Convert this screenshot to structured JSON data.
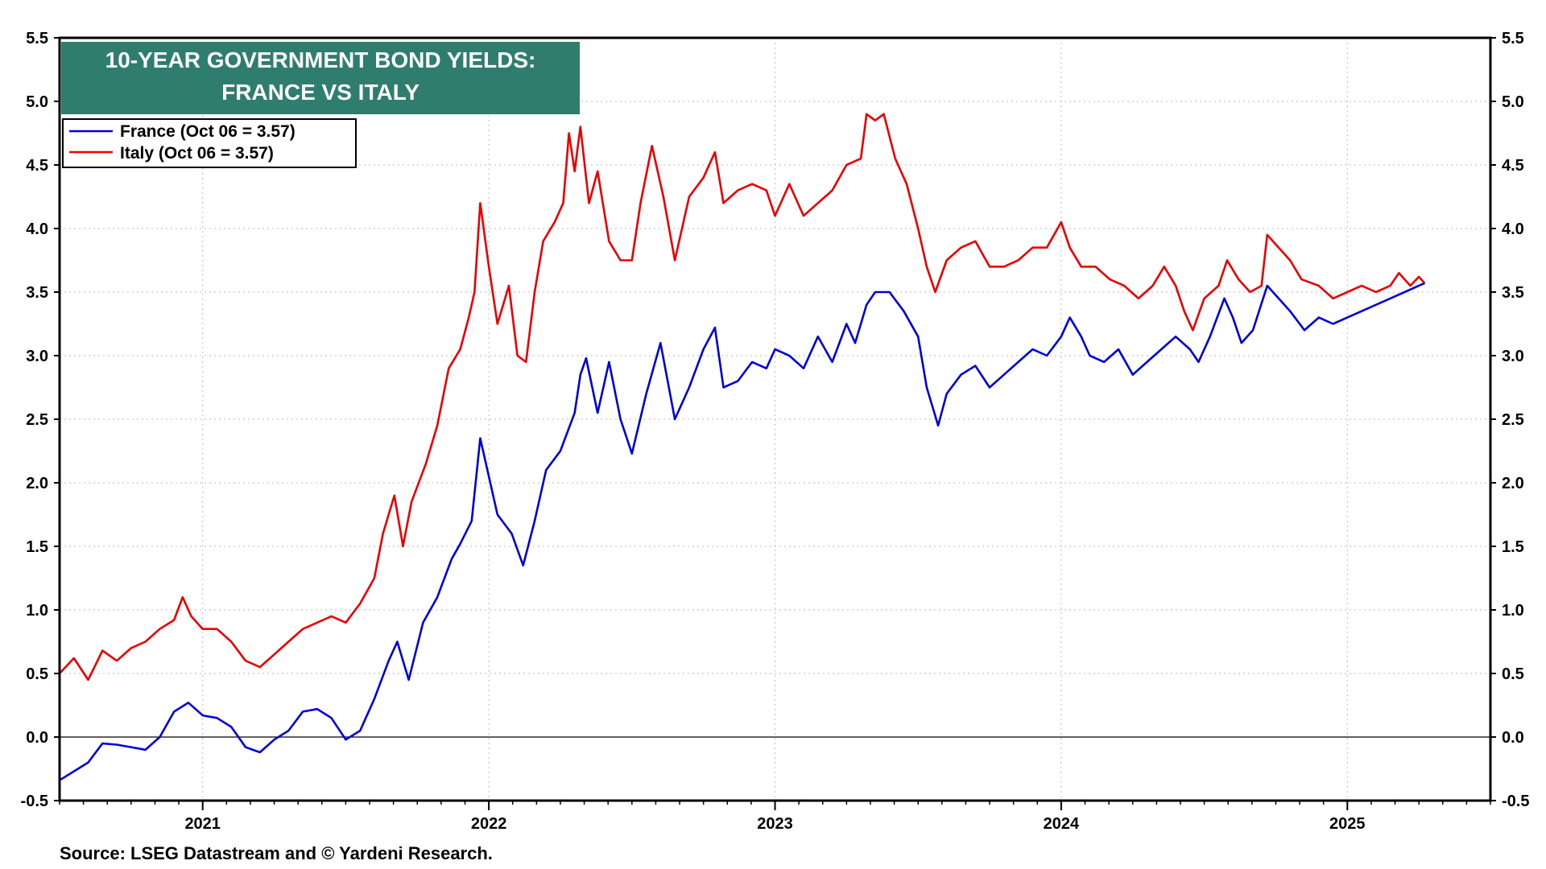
{
  "colors": {
    "france": "#0000dd",
    "italy": "#ee0000",
    "title_bg": "#2e7d6e",
    "grid": "#c8c8c8"
  },
  "source": "Source: LSEG Datastream and © Yardeni Research.",
  "chart_data": {
    "type": "line",
    "title_lines": [
      "10-YEAR GOVERNMENT BOND YIELDS:",
      "FRANCE VS ITALY"
    ],
    "ylim": [
      -0.5,
      5.5
    ],
    "y_ticks": [
      "5.5",
      "5.0",
      "4.5",
      "4.0",
      "3.5",
      "3.0",
      "2.5",
      "2.0",
      "1.5",
      "1.0",
      "0.5",
      "0.0",
      "-0.5"
    ],
    "x_range": [
      2020.5,
      2025.5
    ],
    "x_labels": [
      "2021",
      "2022",
      "2023",
      "2024",
      "2025"
    ],
    "legend_position": "top-left",
    "grid": true,
    "zero_line": true,
    "series": [
      {
        "name": "France (Oct 06 = 3.57)",
        "color": "#0000dd",
        "points": [
          [
            2020.5,
            -0.34
          ],
          [
            2020.6,
            -0.2
          ],
          [
            2020.65,
            -0.05
          ],
          [
            2020.7,
            -0.06
          ],
          [
            2020.75,
            -0.08
          ],
          [
            2020.8,
            -0.1
          ],
          [
            2020.85,
            0.0
          ],
          [
            2020.9,
            0.2
          ],
          [
            2020.95,
            0.27
          ],
          [
            2021.0,
            0.17
          ],
          [
            2021.05,
            0.15
          ],
          [
            2021.1,
            0.08
          ],
          [
            2021.15,
            -0.08
          ],
          [
            2021.2,
            -0.12
          ],
          [
            2021.25,
            -0.02
          ],
          [
            2021.3,
            0.05
          ],
          [
            2021.35,
            0.2
          ],
          [
            2021.4,
            0.22
          ],
          [
            2021.45,
            0.15
          ],
          [
            2021.5,
            -0.02
          ],
          [
            2021.55,
            0.05
          ],
          [
            2021.6,
            0.3
          ],
          [
            2021.65,
            0.6
          ],
          [
            2021.68,
            0.75
          ],
          [
            2021.72,
            0.45
          ],
          [
            2021.77,
            0.9
          ],
          [
            2021.82,
            1.1
          ],
          [
            2021.87,
            1.4
          ],
          [
            2021.9,
            1.52
          ],
          [
            2021.94,
            1.7
          ],
          [
            2021.97,
            2.35
          ],
          [
            2022.0,
            2.05
          ],
          [
            2022.03,
            1.75
          ],
          [
            2022.08,
            1.6
          ],
          [
            2022.12,
            1.35
          ],
          [
            2022.16,
            1.7
          ],
          [
            2022.2,
            2.1
          ],
          [
            2022.25,
            2.25
          ],
          [
            2022.3,
            2.55
          ],
          [
            2022.32,
            2.85
          ],
          [
            2022.34,
            2.98
          ],
          [
            2022.38,
            2.55
          ],
          [
            2022.42,
            2.95
          ],
          [
            2022.46,
            2.5
          ],
          [
            2022.5,
            2.23
          ],
          [
            2022.55,
            2.7
          ],
          [
            2022.6,
            3.1
          ],
          [
            2022.65,
            2.5
          ],
          [
            2022.7,
            2.75
          ],
          [
            2022.75,
            3.05
          ],
          [
            2022.79,
            3.22
          ],
          [
            2022.82,
            2.75
          ],
          [
            2022.87,
            2.8
          ],
          [
            2022.92,
            2.95
          ],
          [
            2022.97,
            2.9
          ],
          [
            2023.0,
            3.05
          ],
          [
            2023.05,
            3.0
          ],
          [
            2023.1,
            2.9
          ],
          [
            2023.15,
            3.15
          ],
          [
            2023.2,
            2.95
          ],
          [
            2023.25,
            3.25
          ],
          [
            2023.28,
            3.1
          ],
          [
            2023.32,
            3.4
          ],
          [
            2023.35,
            3.5
          ],
          [
            2023.4,
            3.5
          ],
          [
            2023.45,
            3.35
          ],
          [
            2023.5,
            3.15
          ],
          [
            2023.53,
            2.75
          ],
          [
            2023.57,
            2.45
          ],
          [
            2023.6,
            2.7
          ],
          [
            2023.65,
            2.85
          ],
          [
            2023.7,
            2.92
          ],
          [
            2023.75,
            2.75
          ],
          [
            2023.8,
            2.85
          ],
          [
            2023.85,
            2.95
          ],
          [
            2023.9,
            3.05
          ],
          [
            2023.95,
            3.0
          ],
          [
            2024.0,
            3.15
          ],
          [
            2024.03,
            3.3
          ],
          [
            2024.07,
            3.15
          ],
          [
            2024.1,
            3.0
          ],
          [
            2024.15,
            2.95
          ],
          [
            2024.2,
            3.05
          ],
          [
            2024.25,
            2.85
          ],
          [
            2024.3,
            2.95
          ],
          [
            2024.35,
            3.05
          ],
          [
            2024.4,
            3.15
          ],
          [
            2024.45,
            3.05
          ],
          [
            2024.48,
            2.95
          ],
          [
            2024.52,
            3.15
          ],
          [
            2024.57,
            3.45
          ],
          [
            2024.6,
            3.3
          ],
          [
            2024.63,
            3.1
          ],
          [
            2024.67,
            3.2
          ],
          [
            2024.72,
            3.55
          ],
          [
            2024.76,
            3.45
          ],
          [
            2024.8,
            3.35
          ],
          [
            2024.85,
            3.2
          ],
          [
            2024.9,
            3.3
          ],
          [
            2024.95,
            3.25
          ],
          [
            2025.0,
            3.3
          ],
          [
            2025.05,
            3.35
          ],
          [
            2025.1,
            3.4
          ],
          [
            2025.15,
            3.45
          ],
          [
            2025.2,
            3.5
          ],
          [
            2025.25,
            3.55
          ],
          [
            2025.27,
            3.57
          ]
        ]
      },
      {
        "name": "Italy (Oct 06 = 3.57)",
        "color": "#ee0000",
        "points": [
          [
            2020.5,
            0.5
          ],
          [
            2020.55,
            0.62
          ],
          [
            2020.6,
            0.45
          ],
          [
            2020.65,
            0.68
          ],
          [
            2020.7,
            0.6
          ],
          [
            2020.75,
            0.7
          ],
          [
            2020.8,
            0.75
          ],
          [
            2020.85,
            0.85
          ],
          [
            2020.9,
            0.92
          ],
          [
            2020.93,
            1.1
          ],
          [
            2020.96,
            0.95
          ],
          [
            2021.0,
            0.85
          ],
          [
            2021.05,
            0.85
          ],
          [
            2021.1,
            0.75
          ],
          [
            2021.15,
            0.6
          ],
          [
            2021.2,
            0.55
          ],
          [
            2021.25,
            0.65
          ],
          [
            2021.3,
            0.75
          ],
          [
            2021.35,
            0.85
          ],
          [
            2021.4,
            0.9
          ],
          [
            2021.45,
            0.95
          ],
          [
            2021.5,
            0.9
          ],
          [
            2021.55,
            1.05
          ],
          [
            2021.6,
            1.25
          ],
          [
            2021.63,
            1.6
          ],
          [
            2021.67,
            1.9
          ],
          [
            2021.7,
            1.5
          ],
          [
            2021.73,
            1.85
          ],
          [
            2021.78,
            2.15
          ],
          [
            2021.82,
            2.45
          ],
          [
            2021.86,
            2.9
          ],
          [
            2021.9,
            3.05
          ],
          [
            2021.93,
            3.3
          ],
          [
            2021.95,
            3.5
          ],
          [
            2021.97,
            4.2
          ],
          [
            2022.0,
            3.7
          ],
          [
            2022.03,
            3.25
          ],
          [
            2022.07,
            3.55
          ],
          [
            2022.1,
            3.0
          ],
          [
            2022.13,
            2.95
          ],
          [
            2022.16,
            3.5
          ],
          [
            2022.19,
            3.9
          ],
          [
            2022.23,
            4.05
          ],
          [
            2022.26,
            4.2
          ],
          [
            2022.28,
            4.75
          ],
          [
            2022.3,
            4.45
          ],
          [
            2022.32,
            4.8
          ],
          [
            2022.35,
            4.2
          ],
          [
            2022.38,
            4.45
          ],
          [
            2022.42,
            3.9
          ],
          [
            2022.46,
            3.75
          ],
          [
            2022.5,
            3.75
          ],
          [
            2022.53,
            4.2
          ],
          [
            2022.57,
            4.65
          ],
          [
            2022.61,
            4.25
          ],
          [
            2022.65,
            3.75
          ],
          [
            2022.7,
            4.25
          ],
          [
            2022.75,
            4.4
          ],
          [
            2022.79,
            4.6
          ],
          [
            2022.82,
            4.2
          ],
          [
            2022.87,
            4.3
          ],
          [
            2022.92,
            4.35
          ],
          [
            2022.97,
            4.3
          ],
          [
            2023.0,
            4.1
          ],
          [
            2023.05,
            4.35
          ],
          [
            2023.1,
            4.1
          ],
          [
            2023.15,
            4.2
          ],
          [
            2023.2,
            4.3
          ],
          [
            2023.25,
            4.5
          ],
          [
            2023.3,
            4.55
          ],
          [
            2023.32,
            4.9
          ],
          [
            2023.35,
            4.85
          ],
          [
            2023.38,
            4.9
          ],
          [
            2023.42,
            4.55
          ],
          [
            2023.46,
            4.35
          ],
          [
            2023.5,
            4.0
          ],
          [
            2023.53,
            3.7
          ],
          [
            2023.56,
            3.5
          ],
          [
            2023.6,
            3.75
          ],
          [
            2023.65,
            3.85
          ],
          [
            2023.7,
            3.9
          ],
          [
            2023.75,
            3.7
          ],
          [
            2023.8,
            3.7
          ],
          [
            2023.85,
            3.75
          ],
          [
            2023.9,
            3.85
          ],
          [
            2023.95,
            3.85
          ],
          [
            2024.0,
            4.05
          ],
          [
            2024.03,
            3.85
          ],
          [
            2024.07,
            3.7
          ],
          [
            2024.12,
            3.7
          ],
          [
            2024.17,
            3.6
          ],
          [
            2024.22,
            3.55
          ],
          [
            2024.27,
            3.45
          ],
          [
            2024.32,
            3.55
          ],
          [
            2024.36,
            3.7
          ],
          [
            2024.4,
            3.55
          ],
          [
            2024.43,
            3.35
          ],
          [
            2024.46,
            3.2
          ],
          [
            2024.5,
            3.45
          ],
          [
            2024.55,
            3.55
          ],
          [
            2024.58,
            3.75
          ],
          [
            2024.62,
            3.6
          ],
          [
            2024.66,
            3.5
          ],
          [
            2024.7,
            3.55
          ],
          [
            2024.72,
            3.95
          ],
          [
            2024.76,
            3.85
          ],
          [
            2024.8,
            3.75
          ],
          [
            2024.84,
            3.6
          ],
          [
            2024.9,
            3.55
          ],
          [
            2024.95,
            3.45
          ],
          [
            2025.0,
            3.5
          ],
          [
            2025.05,
            3.55
          ],
          [
            2025.1,
            3.5
          ],
          [
            2025.15,
            3.55
          ],
          [
            2025.18,
            3.65
          ],
          [
            2025.22,
            3.55
          ],
          [
            2025.25,
            3.62
          ],
          [
            2025.27,
            3.57
          ]
        ]
      }
    ]
  }
}
